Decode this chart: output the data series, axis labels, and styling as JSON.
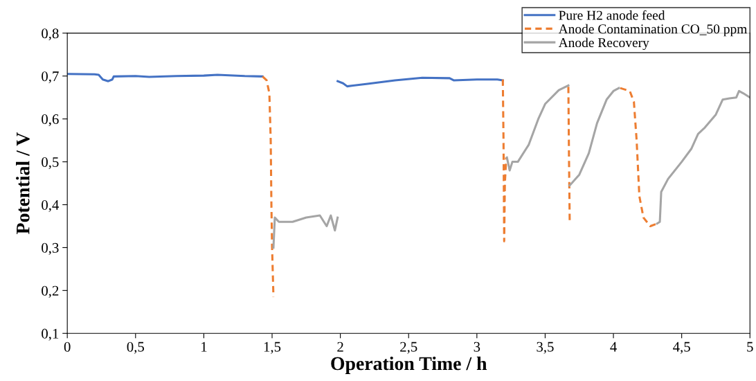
{
  "chart_data": {
    "type": "line",
    "xlabel": "Operation Time / h",
    "ylabel": "Potential / V",
    "xlim": [
      0,
      5
    ],
    "ylim": [
      0.1,
      0.8
    ],
    "xticks": [
      {
        "value": 0,
        "label": "0"
      },
      {
        "value": 0.5,
        "label": "0,5"
      },
      {
        "value": 1,
        "label": "1"
      },
      {
        "value": 1.5,
        "label": "1,5"
      },
      {
        "value": 2,
        "label": "2"
      },
      {
        "value": 2.5,
        "label": "2,5"
      },
      {
        "value": 3,
        "label": "3"
      },
      {
        "value": 3.5,
        "label": "3,5"
      },
      {
        "value": 4,
        "label": "4"
      },
      {
        "value": 4.5,
        "label": "4,5"
      },
      {
        "value": 5,
        "label": "5"
      }
    ],
    "yticks": [
      {
        "value": 0.1,
        "label": "0,1"
      },
      {
        "value": 0.2,
        "label": "0,2"
      },
      {
        "value": 0.3,
        "label": "0,3"
      },
      {
        "value": 0.4,
        "label": "0,4"
      },
      {
        "value": 0.5,
        "label": "0,5"
      },
      {
        "value": 0.6,
        "label": "0,6"
      },
      {
        "value": 0.7,
        "label": "0,7"
      },
      {
        "value": 0.8,
        "label": "0,8"
      }
    ],
    "grid": false,
    "legend": "top right",
    "marker": "none",
    "series": [
      {
        "name": "Pure H2 anode feed",
        "color": "#4472c4",
        "line_style": "solid",
        "x": [
          0,
          0.2,
          0.23,
          0.26,
          0.3,
          0.33,
          0.34,
          0.5,
          0.6,
          0.8,
          1.0,
          1.1,
          1.3,
          1.43,
          1.7,
          1.98,
          2.02,
          2.05,
          2.2,
          2.4,
          2.6,
          2.8,
          2.83,
          3.0,
          3.15,
          3.19
        ],
        "values": [
          0.705,
          0.704,
          0.703,
          0.692,
          0.688,
          0.692,
          0.699,
          0.7,
          0.698,
          0.7,
          0.701,
          0.703,
          0.7,
          0.699,
          null,
          0.688,
          0.683,
          0.676,
          0.682,
          0.69,
          0.696,
          0.695,
          0.69,
          0.692,
          0.692,
          0.69
        ]
      },
      {
        "name": "Anode Contamination CO_50 ppm",
        "color": "#ed7d31",
        "line_style": "dashed",
        "x": [
          1.43,
          1.46,
          1.48,
          1.49,
          1.495,
          1.5,
          1.51,
          2.5,
          3.19,
          3.195,
          3.2,
          3.205,
          3.215,
          3.4,
          3.67,
          3.675,
          3.68,
          3.9,
          4.05,
          4.12,
          4.15,
          4.17,
          4.19,
          4.22,
          4.27,
          4.32
        ],
        "values": [
          0.699,
          0.69,
          0.66,
          0.55,
          0.4,
          0.3,
          0.185,
          null,
          0.692,
          0.55,
          0.315,
          0.45,
          0.51,
          null,
          0.675,
          0.5,
          0.355,
          null,
          0.672,
          0.665,
          0.64,
          0.55,
          0.42,
          0.37,
          0.35,
          0.356
        ]
      },
      {
        "name": "Anode Recovery",
        "color": "#a5a5a5",
        "line_style": "solid",
        "x": [
          1.51,
          1.52,
          1.55,
          1.65,
          1.75,
          1.85,
          1.9,
          1.93,
          1.96,
          1.98,
          2.5,
          3.22,
          3.24,
          3.26,
          3.3,
          3.38,
          3.45,
          3.5,
          3.6,
          3.67,
          3.675,
          3.68,
          3.75,
          3.82,
          3.88,
          3.95,
          4.0,
          4.04,
          4.2,
          4.32,
          4.34,
          4.35,
          4.4,
          4.5,
          4.57,
          4.62,
          4.67,
          4.75,
          4.8,
          4.85,
          4.9,
          4.92,
          4.95,
          5.0
        ],
        "values": [
          0.3,
          0.37,
          0.36,
          0.36,
          0.37,
          0.375,
          0.35,
          0.375,
          0.34,
          0.37,
          null,
          0.51,
          0.48,
          0.5,
          0.5,
          0.54,
          0.6,
          0.635,
          0.667,
          0.678,
          null,
          0.445,
          0.47,
          0.52,
          0.59,
          0.645,
          0.665,
          0.672,
          null,
          0.356,
          0.36,
          0.43,
          0.46,
          0.5,
          0.53,
          0.565,
          0.58,
          0.61,
          0.645,
          0.648,
          0.65,
          0.665,
          0.66,
          0.65
        ]
      }
    ]
  }
}
